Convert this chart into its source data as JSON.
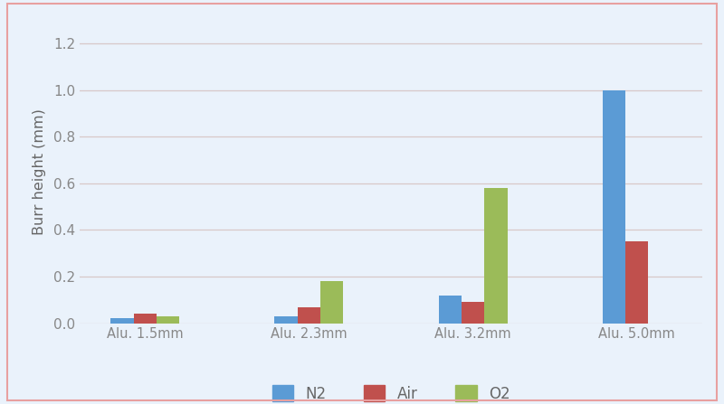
{
  "categories": [
    "Alu. 1.5mm",
    "Alu. 2.3mm",
    "Alu. 3.2mm",
    "Alu. 5.0mm"
  ],
  "series": {
    "N2": [
      0.02,
      0.03,
      0.12,
      1.0
    ],
    "Air": [
      0.04,
      0.07,
      0.09,
      0.35
    ],
    "O2": [
      0.03,
      0.18,
      0.58,
      0.0
    ]
  },
  "colors": {
    "N2": "#5B9BD5",
    "Air": "#C0504D",
    "O2": "#9BBB59"
  },
  "ylabel": "Burr height (mm)",
  "ylim": [
    0.0,
    1.3
  ],
  "yticks": [
    0.0,
    0.2,
    0.4,
    0.6,
    0.8,
    1.0,
    1.2
  ],
  "background_color": "#EAF2FB",
  "bar_width": 0.28,
  "border_color": "#E8A0A0",
  "grid_color": "#D8C8C8",
  "tick_color": "#888888",
  "label_color": "#666666"
}
